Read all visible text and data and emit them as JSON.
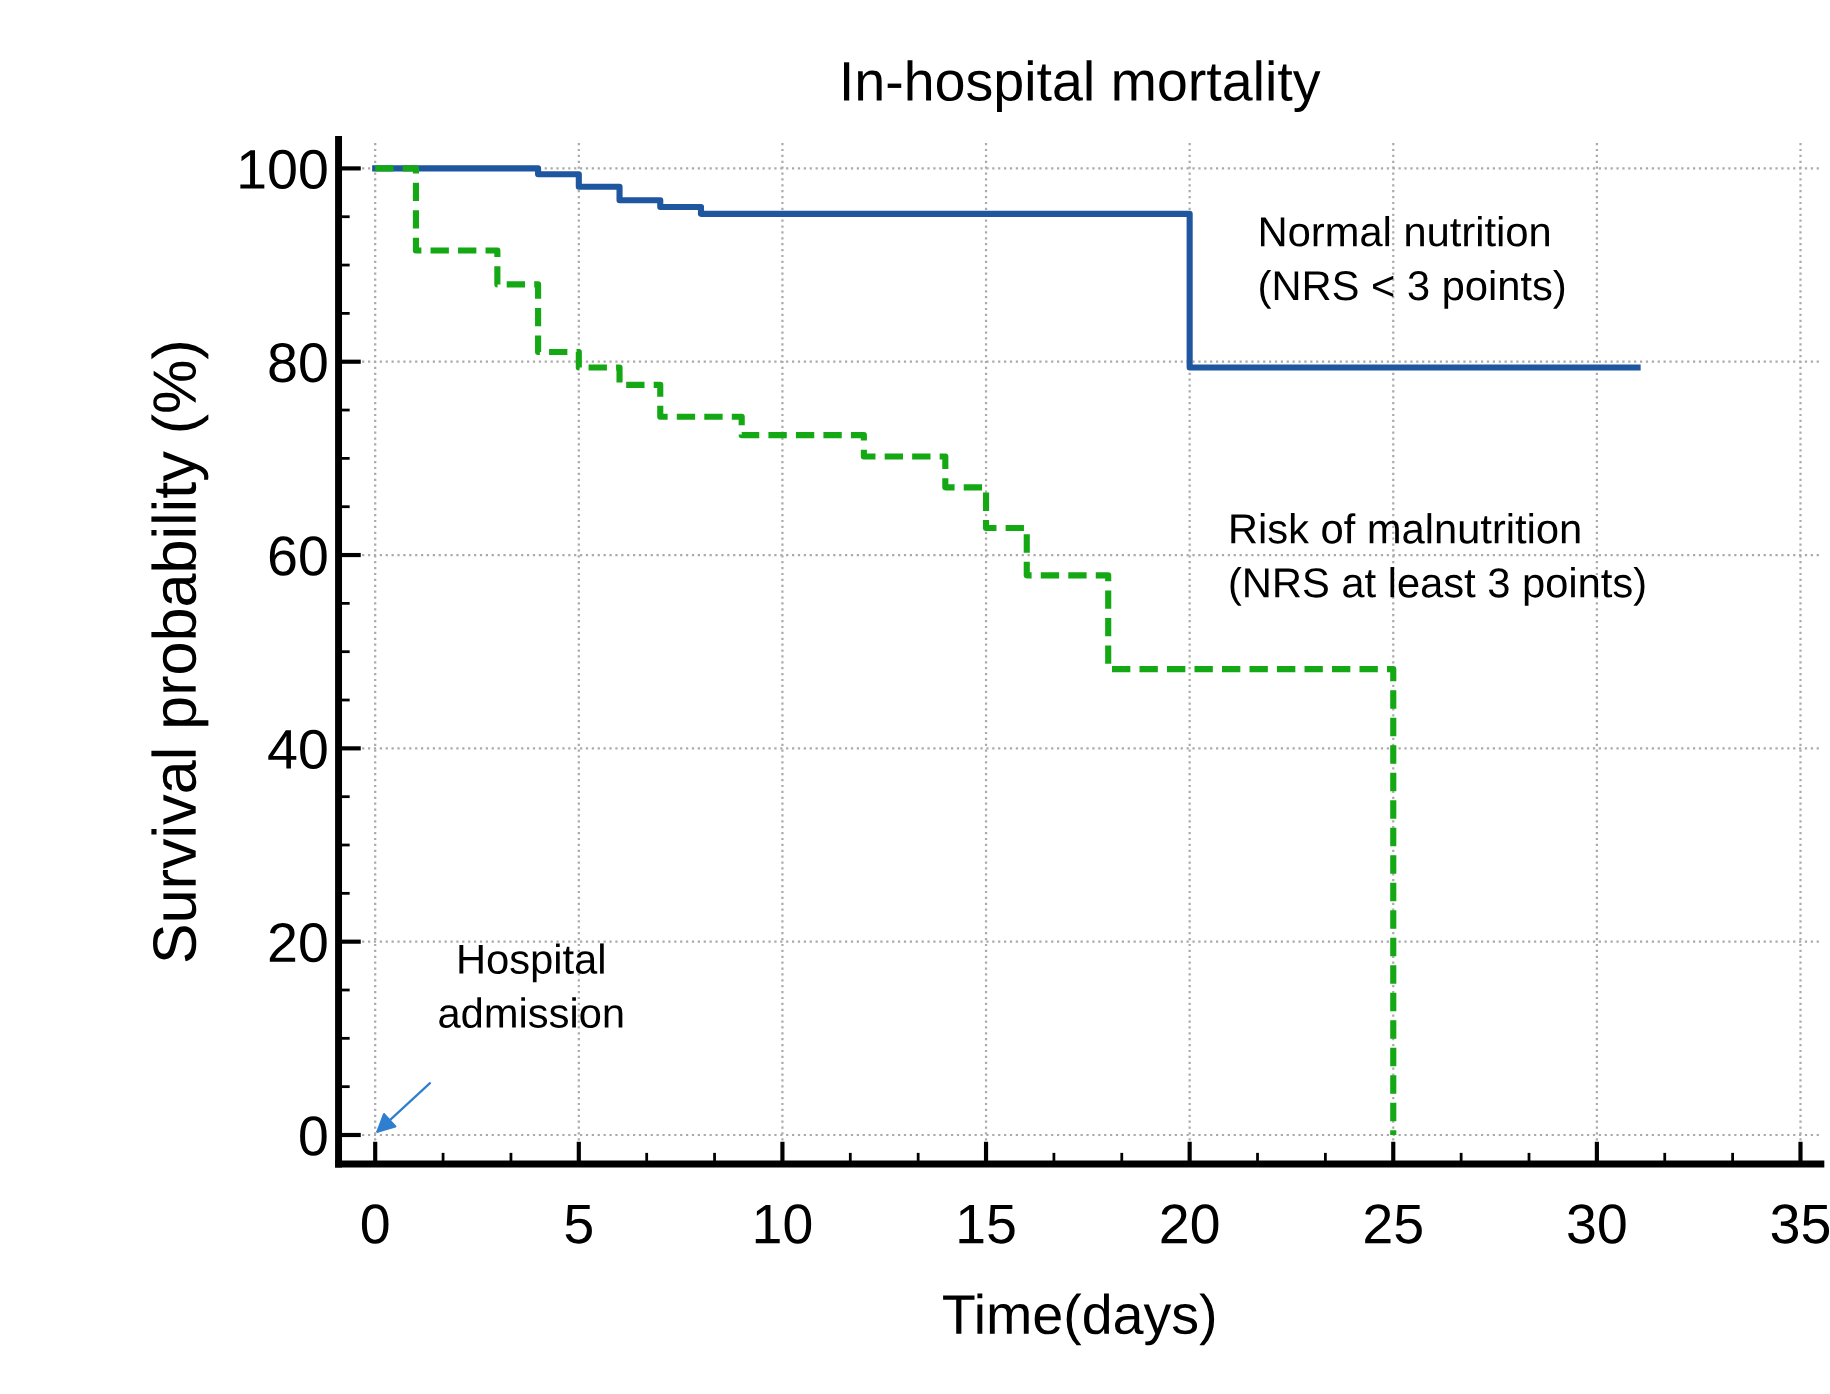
{
  "chart_data": {
    "type": "step",
    "title": "In-hospital mortality",
    "xlabel": "Time(days)",
    "ylabel": "Survival probability (%)",
    "series": [
      {
        "name": "Normal nutrition\n(NRS < 3 points)",
        "color": "#1f56a0",
        "line_style": "solid",
        "x": [
          0,
          4,
          5,
          6,
          7,
          8,
          20,
          31
        ],
        "values": [
          100,
          99.4,
          98.1,
          96.7,
          96.0,
          95.3,
          79.4,
          79.4
        ]
      },
      {
        "name": "Risk of malnutrition\n(NRS at least 3 points)",
        "color": "#14a814",
        "line_style": "dashed",
        "x": [
          0,
          1,
          3,
          4,
          5,
          6,
          7,
          9,
          12,
          14,
          15,
          16,
          18,
          25
        ],
        "values": [
          100,
          91.5,
          88.0,
          81.0,
          79.4,
          77.6,
          74.3,
          72.4,
          70.2,
          67.0,
          62.8,
          57.9,
          48.2,
          0
        ]
      }
    ],
    "annotations": [
      "Hospital\nadmission"
    ],
    "xlim": [
      -0.9,
      35.5
    ],
    "ylim": [
      -3,
      103
    ],
    "xticks": [
      0,
      5,
      10,
      15,
      20,
      25,
      30,
      35
    ],
    "yticks": [
      0,
      20,
      40,
      60,
      80,
      100
    ],
    "grid": true,
    "legend": false,
    "marker": "none"
  }
}
